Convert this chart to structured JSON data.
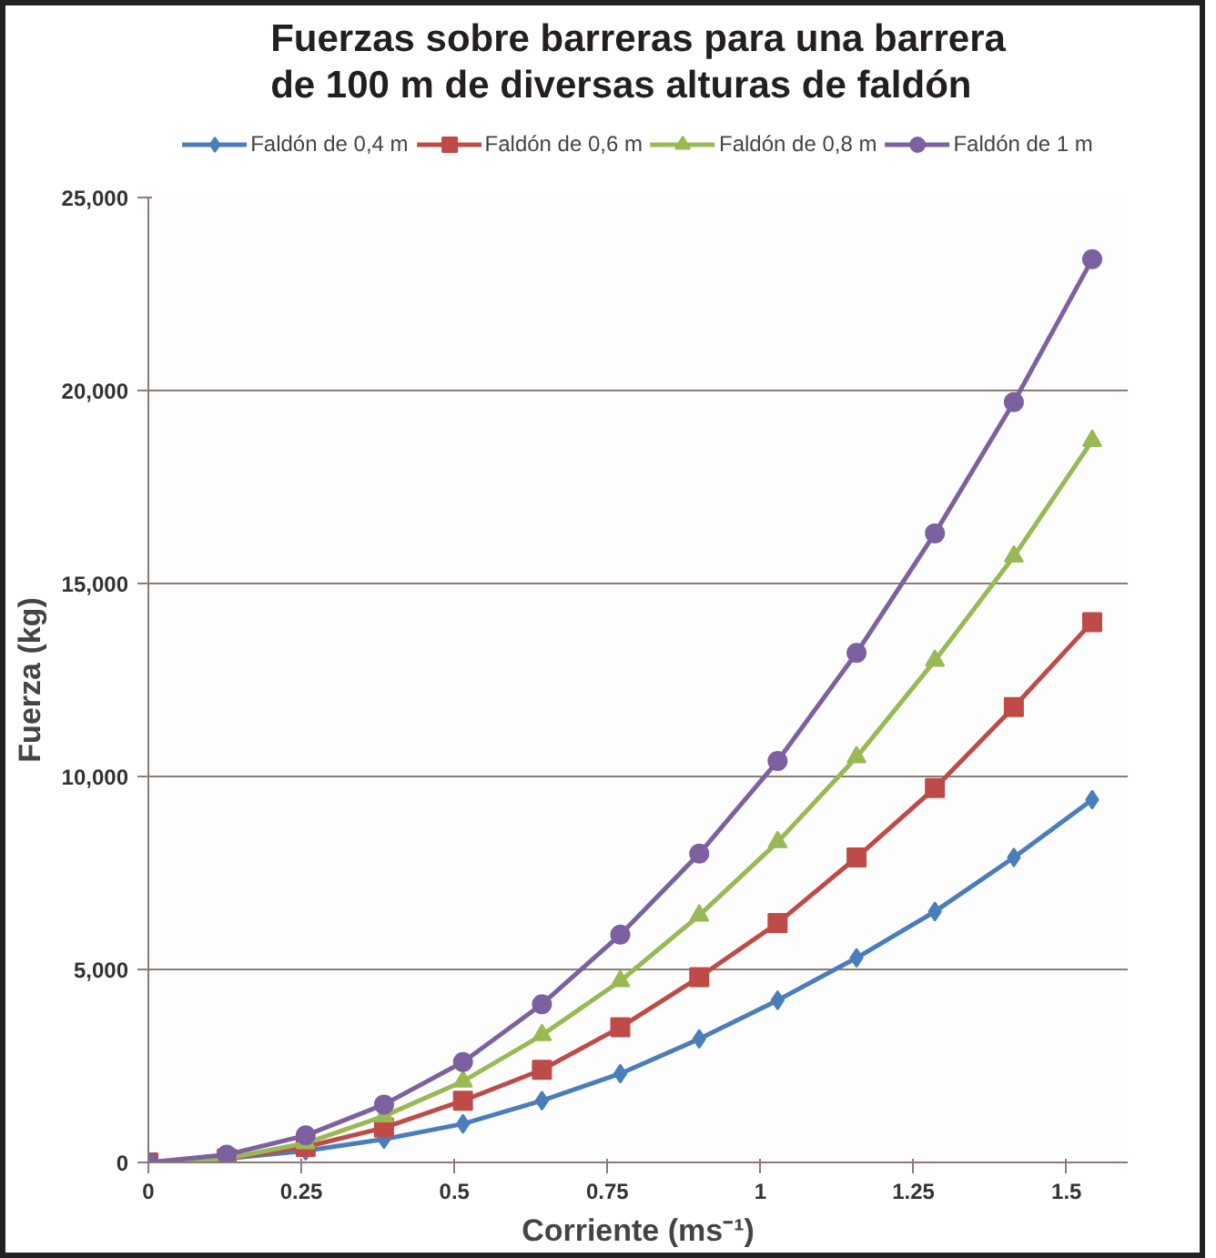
{
  "chart_data": {
    "type": "line",
    "title": "Fuerzas sobre barreras para una barrera\nde 100 m de diversas alturas de faldón",
    "xlabel": "Corriente (ms⁻¹)",
    "ylabel": "Fuerza (kg)",
    "x": [
      0,
      0.128,
      0.257,
      0.385,
      0.514,
      0.643,
      0.771,
      0.9,
      1.028,
      1.157,
      1.285,
      1.414,
      1.542
    ],
    "series": [
      {
        "name": "Faldón de 0,4 m",
        "color": "#4a7ebb",
        "marker": "diamond",
        "values": [
          0,
          100,
          300,
          600,
          1000,
          1600,
          2300,
          3200,
          4200,
          5300,
          6500,
          7900,
          9400
        ]
      },
      {
        "name": "Faldón de 0,6 m",
        "color": "#be4b48",
        "marker": "square",
        "values": [
          0,
          100,
          400,
          900,
          1600,
          2400,
          3500,
          4800,
          6200,
          7900,
          9700,
          11800,
          14000
        ]
      },
      {
        "name": "Faldón de 0,8 m",
        "color": "#98b954",
        "marker": "triangle",
        "values": [
          0,
          100,
          500,
          1200,
          2100,
          3300,
          4700,
          6400,
          8300,
          10500,
          13000,
          15700,
          18700
        ]
      },
      {
        "name": "Faldón de 1 m",
        "color": "#7d60a0",
        "marker": "circle",
        "values": [
          0,
          200,
          700,
          1500,
          2600,
          4100,
          5900,
          8000,
          10400,
          13200,
          16300,
          19700,
          23400
        ]
      }
    ],
    "xlim": [
      0,
      1.6
    ],
    "xticks": [
      0,
      0.25,
      0.5,
      0.75,
      1,
      1.25,
      1.5
    ],
    "ylim": [
      0,
      25000
    ],
    "yticks": [
      0,
      {
        "value": 5000,
        "label": "5,000"
      },
      {
        "value": 10000,
        "label": "10,000"
      },
      {
        "value": 15000,
        "label": "15,000"
      },
      {
        "value": 20000,
        "label": "20,000"
      },
      {
        "value": 25000,
        "label": "25,000"
      }
    ],
    "grid": "y",
    "legend": "top",
    "line_style": "solid"
  }
}
